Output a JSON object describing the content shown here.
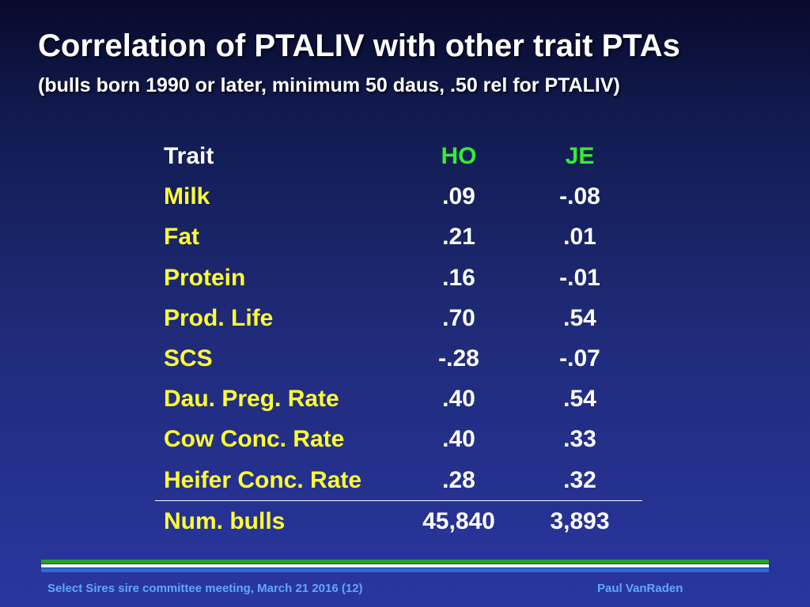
{
  "slide": {
    "title": "Correlation of PTALIV with other trait PTAs",
    "subtitle": "(bulls born 1990 or later, minimum 50 daus, .50 rel for PTALIV)"
  },
  "table": {
    "headers": {
      "trait": "Trait",
      "ho": "HO",
      "je": "JE"
    },
    "rows": [
      {
        "trait": "Milk",
        "ho": ".09",
        "je": "-.08"
      },
      {
        "trait": "Fat",
        "ho": ".21",
        "je": ".01"
      },
      {
        "trait": "Protein",
        "ho": ".16",
        "je": "-.01"
      },
      {
        "trait": "Prod. Life",
        "ho": ".70",
        "je": ".54"
      },
      {
        "trait": "SCS",
        "ho": "-.28",
        "je": "-.07"
      },
      {
        "trait": "Dau. Preg. Rate",
        "ho": ".40",
        "je": ".54"
      },
      {
        "trait": "Cow Conc. Rate",
        "ho": ".40",
        "je": ".33"
      },
      {
        "trait": "Heifer Conc. Rate",
        "ho": ".28",
        "je": ".32"
      }
    ],
    "total": {
      "trait": "Num. bulls",
      "ho": "45,840",
      "je": "3,893"
    }
  },
  "footer": {
    "left": "Select Sires sire committee meeting, March 21 2016 (12)",
    "right": "Paul VanRaden"
  },
  "colors": {
    "trait_label": "#ffff33",
    "breed_header": "#33ee33",
    "values": "#ffffff",
    "footer_text": "#5fa8ff",
    "rule_green": "#2aa12a",
    "rule_blue": "#2b6fd6"
  }
}
